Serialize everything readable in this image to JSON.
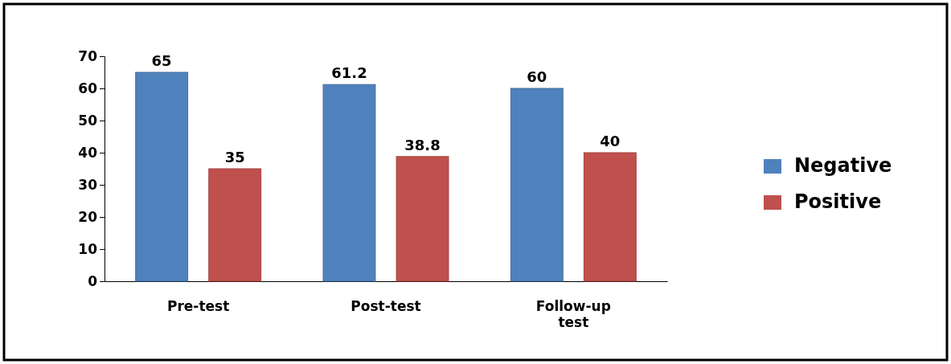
{
  "chart_data": {
    "type": "bar",
    "categories": [
      "Pre-test",
      "Post-test",
      "Follow-up test"
    ],
    "series": [
      {
        "name": "Negative",
        "color": "#4f81bd",
        "values": [
          65,
          61.2,
          60
        ]
      },
      {
        "name": "Positive",
        "color": "#c0504d",
        "values": [
          35,
          38.8,
          40
        ]
      }
    ],
    "ylim": [
      0,
      70
    ],
    "yticks": [
      0,
      10,
      20,
      30,
      40,
      50,
      60,
      70
    ],
    "grid": false,
    "legend": "right",
    "data_labels": true
  }
}
